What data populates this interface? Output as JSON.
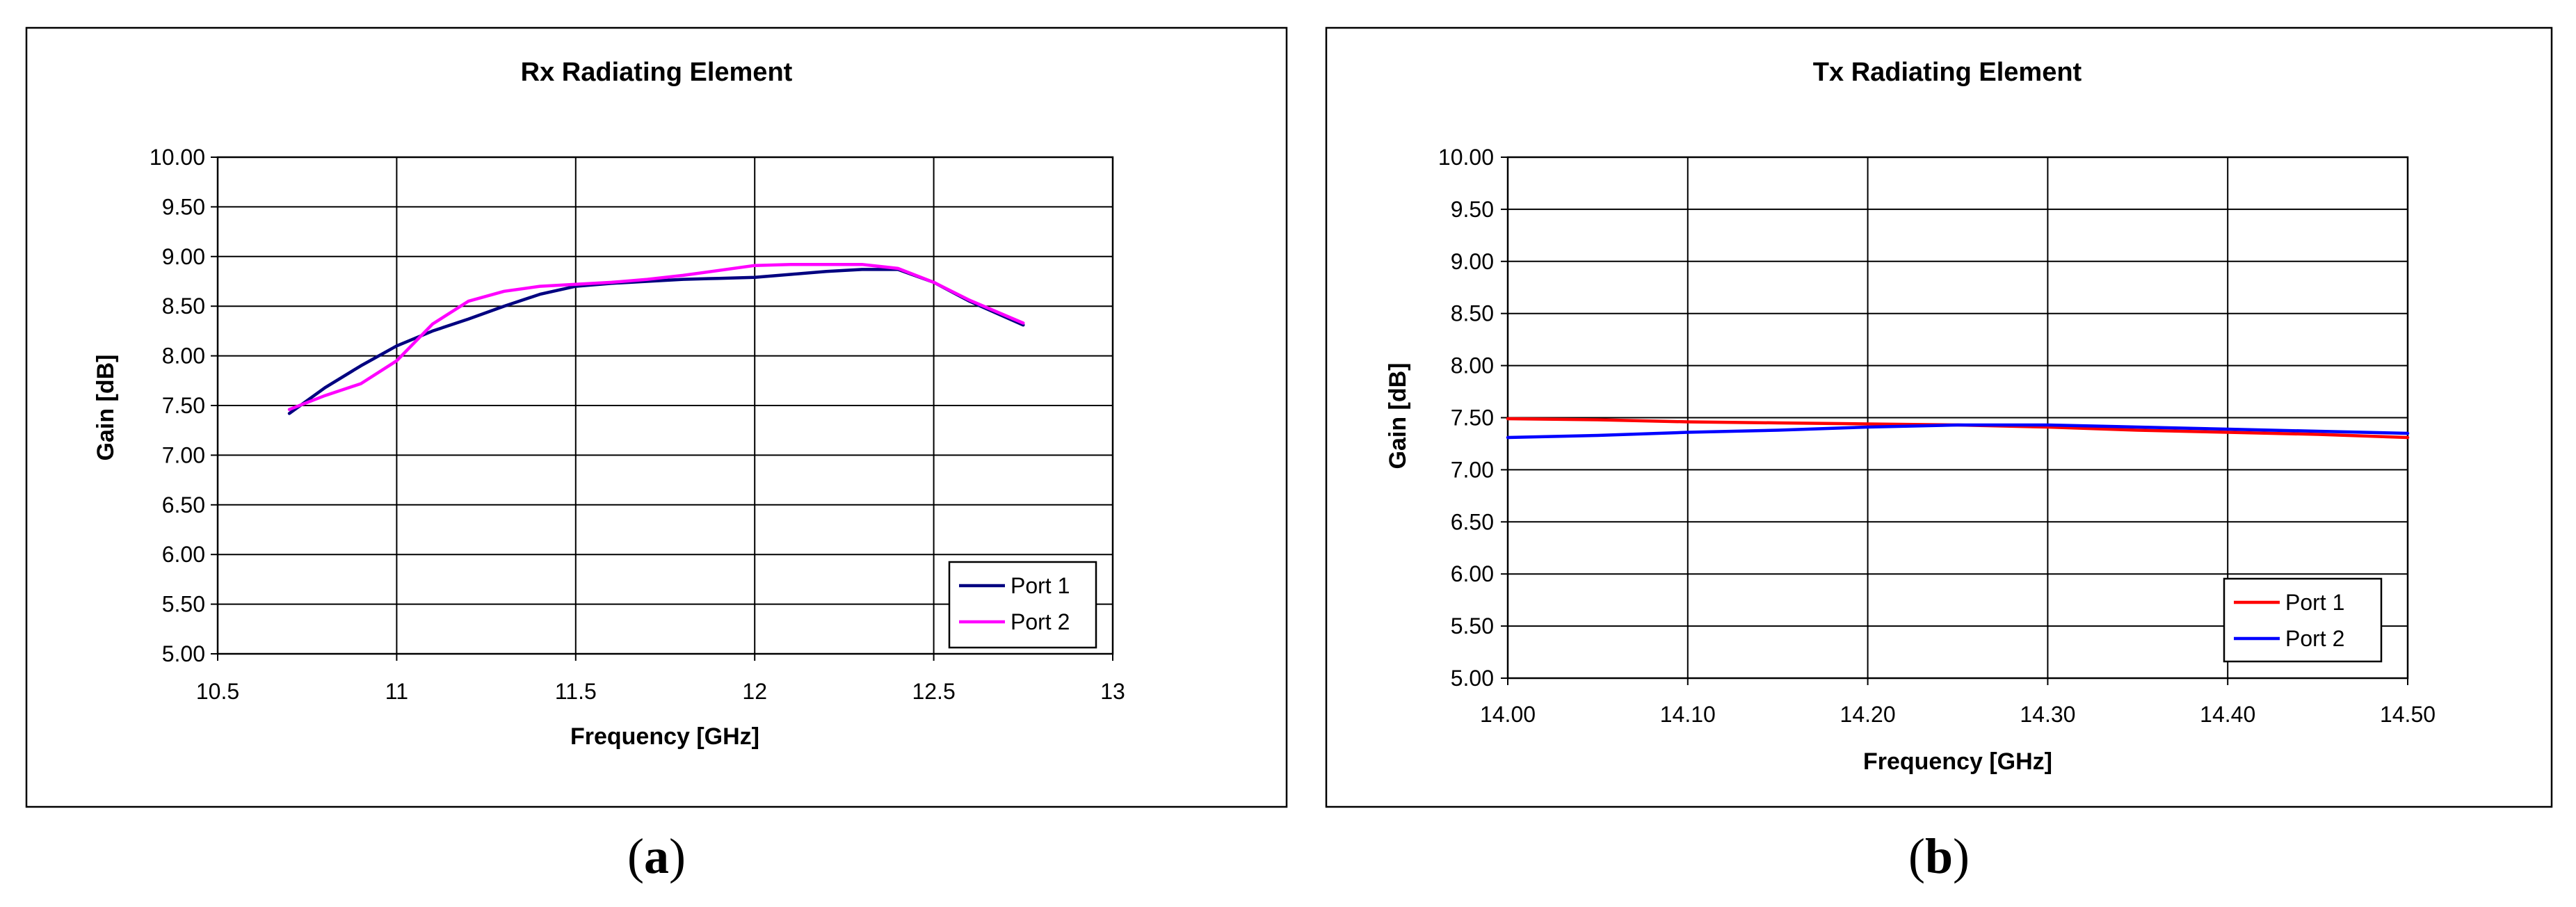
{
  "panels": [
    {
      "label_prefix": "(",
      "label_letter": "a",
      "label_suffix": ")"
    },
    {
      "label_prefix": "(",
      "label_letter": "b",
      "label_suffix": ")"
    }
  ],
  "chart_data": [
    {
      "type": "line",
      "title": "Rx Radiating Element",
      "xlabel": "Frequency [GHz]",
      "ylabel": "Gain [dB]",
      "xlim": [
        10.5,
        13
      ],
      "ylim": [
        5.0,
        10.0
      ],
      "x_ticks": [
        "10.5",
        "11",
        "11.5",
        "12",
        "12.5",
        "13"
      ],
      "y_ticks": [
        "5.00",
        "5.50",
        "6.00",
        "6.50",
        "7.00",
        "7.50",
        "8.00",
        "8.50",
        "9.00",
        "9.50",
        "10.00"
      ],
      "grid": true,
      "legend_position": "bottom-right",
      "series": [
        {
          "name": "Port 1",
          "color": "#000080",
          "x": [
            10.7,
            10.8,
            10.9,
            11.0,
            11.1,
            11.2,
            11.3,
            11.4,
            11.5,
            11.6,
            11.7,
            11.8,
            11.9,
            12.0,
            12.1,
            12.2,
            12.3,
            12.4,
            12.5,
            12.6,
            12.75
          ],
          "y": [
            7.42,
            7.68,
            7.9,
            8.1,
            8.25,
            8.37,
            8.5,
            8.62,
            8.7,
            8.73,
            8.75,
            8.77,
            8.78,
            8.79,
            8.82,
            8.85,
            8.87,
            8.87,
            8.74,
            8.55,
            8.31
          ]
        },
        {
          "name": "Port 2",
          "color": "#ff00ff",
          "x": [
            10.7,
            10.8,
            10.9,
            11.0,
            11.1,
            11.2,
            11.3,
            11.4,
            11.5,
            11.6,
            11.7,
            11.8,
            11.9,
            12.0,
            12.1,
            12.2,
            12.3,
            12.4,
            12.5,
            12.6,
            12.75
          ],
          "y": [
            7.46,
            7.6,
            7.72,
            7.95,
            8.32,
            8.55,
            8.65,
            8.7,
            8.72,
            8.74,
            8.77,
            8.81,
            8.86,
            8.91,
            8.92,
            8.92,
            8.92,
            8.88,
            8.74,
            8.56,
            8.33
          ]
        }
      ]
    },
    {
      "type": "line",
      "title": "Tx Radiating Element",
      "xlabel": "Frequency [GHz]",
      "ylabel": "Gain [dB]",
      "xlim": [
        14.0,
        14.5
      ],
      "ylim": [
        5.0,
        10.0
      ],
      "x_ticks": [
        "14.00",
        "14.10",
        "14.20",
        "14.30",
        "14.40",
        "14.50"
      ],
      "y_ticks": [
        "5.00",
        "5.50",
        "6.00",
        "6.50",
        "7.00",
        "7.50",
        "8.00",
        "8.50",
        "9.00",
        "9.50",
        "10.00"
      ],
      "grid": true,
      "legend_position": "bottom-right",
      "series": [
        {
          "name": "Port 1",
          "color": "#ff0000",
          "x": [
            14.0,
            14.05,
            14.1,
            14.15,
            14.2,
            14.25,
            14.3,
            14.35,
            14.4,
            14.45,
            14.5
          ],
          "y": [
            7.49,
            7.48,
            7.46,
            7.45,
            7.44,
            7.43,
            7.41,
            7.38,
            7.36,
            7.34,
            7.31
          ]
        },
        {
          "name": "Port 2",
          "color": "#0000ff",
          "x": [
            14.0,
            14.05,
            14.1,
            14.15,
            14.2,
            14.25,
            14.3,
            14.35,
            14.4,
            14.45,
            14.5
          ],
          "y": [
            7.31,
            7.33,
            7.36,
            7.38,
            7.41,
            7.43,
            7.43,
            7.41,
            7.39,
            7.37,
            7.35
          ]
        }
      ]
    }
  ]
}
